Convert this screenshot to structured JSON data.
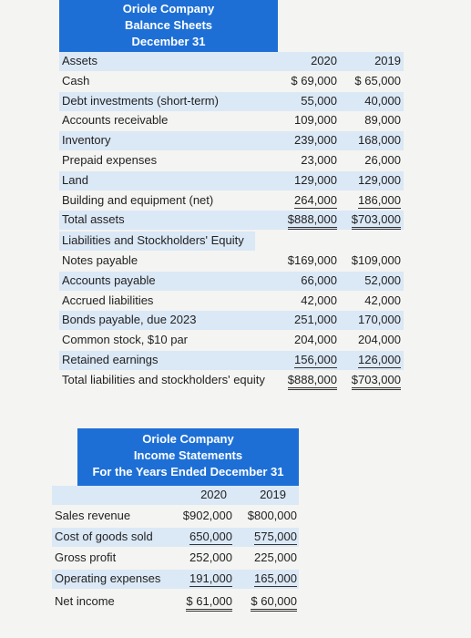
{
  "balance_sheet": {
    "title": [
      "Oriole Company",
      "Balance Sheets",
      "December 31"
    ],
    "columns": [
      "Assets",
      "2020",
      "2019"
    ],
    "rows": [
      [
        "Cash",
        "$ 69,000",
        "$ 65,000"
      ],
      [
        "Debt investments (short-term)",
        "55,000",
        "40,000"
      ],
      [
        "Accounts receivable",
        "109,000",
        "89,000"
      ],
      [
        "Inventory",
        "239,000",
        "168,000"
      ],
      [
        "Prepaid expenses",
        "23,000",
        "26,000"
      ],
      [
        "Land",
        "129,000",
        "129,000"
      ],
      [
        "Building and equipment (net)",
        "264,000",
        "186,000"
      ],
      [
        "Total assets",
        "$888,000",
        "$703,000"
      ]
    ],
    "section": "Liabilities and Stockholders' Equity",
    "rows2": [
      [
        "Notes payable",
        "$169,000",
        "$109,000"
      ],
      [
        "Accounts payable",
        "66,000",
        "52,000"
      ],
      [
        "Accrued liabilities",
        "42,000",
        "42,000"
      ],
      [
        "Bonds payable, due 2023",
        "251,000",
        "170,000"
      ],
      [
        "Common stock, $10 par",
        "204,000",
        "204,000"
      ],
      [
        "Retained earnings",
        "156,000",
        "126,000"
      ],
      [
        "Total liabilities and stockholders' equity",
        "$888,000",
        "$703,000"
      ]
    ]
  },
  "income_statement": {
    "title": [
      "Oriole Company",
      "Income Statements",
      "For the Years Ended December 31"
    ],
    "columns": [
      "2020",
      "2019"
    ],
    "rows": [
      [
        "Sales revenue",
        "$902,000",
        "$800,000"
      ],
      [
        "Cost of goods sold",
        "650,000",
        "575,000"
      ],
      [
        "Gross profit",
        "252,000",
        "225,000"
      ],
      [
        "Operating expenses",
        "191,000",
        "165,000"
      ],
      [
        "Net income",
        "$ 61,000",
        "$ 60,000"
      ]
    ]
  }
}
